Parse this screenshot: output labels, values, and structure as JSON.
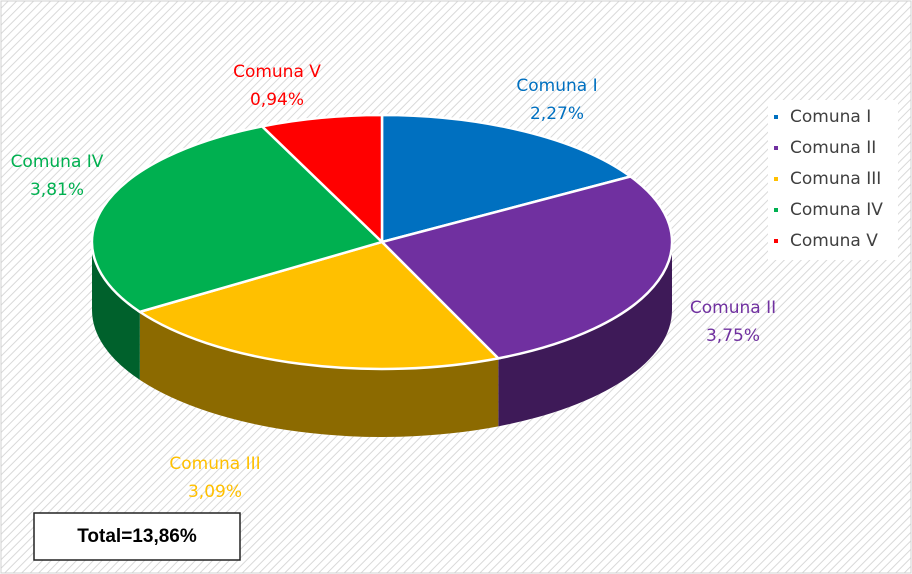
{
  "chart_data": {
    "type": "pie",
    "categories": [
      "Comuna I",
      "Comuna II",
      "Comuna III",
      "Comuna IV",
      "Comuna V"
    ],
    "values": [
      2.27,
      3.75,
      3.09,
      3.81,
      0.94
    ],
    "value_labels": [
      "2,27%",
      "3,75%",
      "3,09%",
      "3,81%",
      "0,94%"
    ],
    "colors": [
      "#0070c0",
      "#7030a0",
      "#ffc000",
      "#00b050",
      "#ff0000"
    ],
    "legend": "right",
    "annotation": "Total=13,86%"
  }
}
